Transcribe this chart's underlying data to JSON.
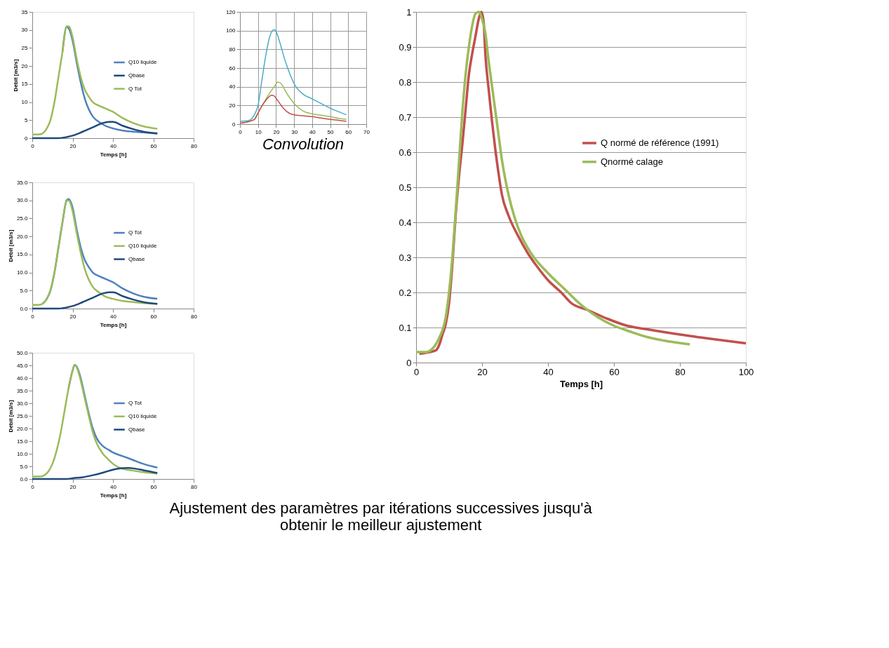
{
  "chart_data": [
    {
      "type": "line",
      "xlabel": "Temps [h]",
      "ylabel": "Débit [m3/s]",
      "xlim": [
        0,
        80
      ],
      "xticks": [
        0,
        20,
        40,
        60,
        80
      ],
      "ylim": [
        0,
        35
      ],
      "yticks": [
        0,
        5,
        10,
        15,
        20,
        25,
        30,
        35
      ],
      "legend": "right",
      "grid": false,
      "series": [
        {
          "name": "Q10 liquide",
          "color": "#4f81bd",
          "x": [
            15,
            17,
            18,
            20,
            22,
            24,
            26,
            28,
            30,
            33,
            36,
            40,
            45,
            50,
            55,
            62
          ],
          "values": [
            24,
            30.8,
            30.5,
            27,
            21,
            15.5,
            11,
            8,
            6,
            4.5,
            3.5,
            2.7,
            2.1,
            1.8,
            1.6,
            1.3
          ]
        },
        {
          "name": "Qbase",
          "color": "#1f497d",
          "x": [
            0,
            13,
            17,
            20,
            25,
            30,
            35,
            38,
            40,
            45,
            50,
            55,
            62
          ],
          "values": [
            0,
            0,
            0.3,
            0.7,
            1.8,
            3,
            4.2,
            4.5,
            4.5,
            3.4,
            2.5,
            1.8,
            1.3
          ]
        },
        {
          "name": "Q Tot",
          "color": "#9bbb59",
          "x": [
            0,
            3,
            5,
            7,
            9,
            11,
            13,
            15,
            17,
            18,
            20,
            22,
            24,
            26,
            28,
            30,
            33,
            36,
            40,
            45,
            50,
            55,
            62
          ],
          "values": [
            1,
            1,
            1.3,
            2.5,
            5,
            10,
            17,
            24,
            31,
            31,
            28,
            22,
            17,
            13.5,
            11.5,
            10,
            9,
            8.3,
            7.3,
            5.5,
            4.2,
            3.3,
            2.6
          ]
        }
      ]
    },
    {
      "type": "line",
      "xlabel": "Temps [h]",
      "ylabel": "Débit [m3/s]",
      "xlim": [
        0,
        80
      ],
      "xticks": [
        0,
        20,
        40,
        60,
        80
      ],
      "ylim": [
        0,
        35
      ],
      "yticks": [
        {
          "value": 0,
          "label": "0.0"
        },
        {
          "value": 5,
          "label": "5.0"
        },
        {
          "value": 10,
          "label": "10.0"
        },
        {
          "value": 15,
          "label": "15.0"
        },
        {
          "value": 20,
          "label": "20.0"
        },
        {
          "value": 25,
          "label": "25.0"
        },
        {
          "value": 30,
          "label": "30.0"
        },
        {
          "value": 35,
          "label": "35.0"
        }
      ],
      "legend": "right",
      "grid": false,
      "series": [
        {
          "name": "Q Tot",
          "color": "#4f81bd",
          "x": [
            5,
            7,
            9,
            11,
            13,
            15,
            17,
            18,
            20,
            22,
            24,
            26,
            28,
            30,
            33,
            36,
            40,
            45,
            50,
            55,
            62
          ],
          "values": [
            1.3,
            2.5,
            5,
            10,
            17,
            24,
            30,
            30.4,
            28,
            22,
            17,
            13.5,
            11.5,
            10,
            9,
            8.3,
            7.3,
            5.5,
            4.2,
            3.3,
            2.7
          ]
        },
        {
          "name": "Q10 liquide",
          "color": "#9bbb59",
          "x": [
            0,
            3,
            5,
            7,
            9,
            11,
            13,
            15,
            17,
            18,
            20,
            22,
            24,
            26,
            28,
            30,
            33,
            36,
            40,
            45,
            50,
            55,
            62
          ],
          "values": [
            1,
            1,
            1.3,
            2.5,
            5,
            10,
            17,
            24,
            29.8,
            30,
            27,
            21,
            15.5,
            11,
            8,
            6,
            4.5,
            3.4,
            2.7,
            2.1,
            1.8,
            1.5,
            1.3
          ]
        },
        {
          "name": "Qbase",
          "color": "#1f497d",
          "x": [
            0,
            13,
            17,
            20,
            25,
            30,
            35,
            38,
            40,
            45,
            50,
            55,
            62
          ],
          "values": [
            0,
            0,
            0.3,
            0.7,
            1.8,
            3,
            4.2,
            4.5,
            4.5,
            3.4,
            2.5,
            1.8,
            1.3
          ]
        }
      ]
    },
    {
      "type": "line",
      "xlabel": "Temps [h]",
      "ylabel": "Débit [m3/s]",
      "xlim": [
        0,
        80
      ],
      "xticks": [
        0,
        20,
        40,
        60,
        80
      ],
      "ylim": [
        0,
        50
      ],
      "yticks": [
        {
          "value": 0,
          "label": "0.0"
        },
        {
          "value": 5,
          "label": "5.0"
        },
        {
          "value": 10,
          "label": "10.0"
        },
        {
          "value": 15,
          "label": "15.0"
        },
        {
          "value": 20,
          "label": "20.0"
        },
        {
          "value": 25,
          "label": "25.0"
        },
        {
          "value": 30,
          "label": "30.0"
        },
        {
          "value": 35,
          "label": "35.0"
        },
        {
          "value": 40,
          "label": "40.0"
        },
        {
          "value": 45,
          "label": "45.0"
        },
        {
          "value": 50,
          "label": "50.0"
        }
      ],
      "legend": "right",
      "grid": false,
      "series": [
        {
          "name": "Q Tot",
          "color": "#4f81bd",
          "x": [
            18,
            20,
            21,
            22,
            24,
            26,
            28,
            30,
            32,
            35,
            38,
            40,
            45,
            50,
            55,
            62
          ],
          "values": [
            36,
            43,
            45.2,
            44.5,
            40,
            33,
            26,
            20,
            16,
            13,
            11.5,
            10.5,
            9,
            7.5,
            6,
            4.5
          ]
        },
        {
          "name": "Q10 liquide",
          "color": "#9bbb59",
          "x": [
            0,
            4,
            6,
            8,
            10,
            12,
            14,
            16,
            18,
            20,
            21,
            22,
            24,
            26,
            28,
            30,
            32,
            35,
            38,
            40,
            45,
            50,
            55,
            62
          ],
          "values": [
            1,
            1,
            1.5,
            3,
            6,
            11,
            18,
            27,
            36,
            43,
            45,
            44.3,
            39,
            32,
            25,
            18.5,
            14,
            10,
            7.5,
            6,
            4,
            3.3,
            2.7,
            2.1
          ]
        },
        {
          "name": "Qbase",
          "color": "#1f497d",
          "x": [
            0,
            17,
            20,
            25,
            30,
            35,
            40,
            45,
            48,
            50,
            55,
            62
          ],
          "values": [
            0,
            0,
            0.3,
            0.7,
            1.5,
            2.5,
            3.7,
            4.3,
            4.4,
            4.2,
            3.5,
            2.4
          ]
        }
      ]
    },
    {
      "type": "line",
      "annotations": [
        "Convolution"
      ],
      "xlim": [
        0,
        70
      ],
      "xticks": [
        0,
        10,
        20,
        30,
        40,
        50,
        60,
        70
      ],
      "ylim": [
        0,
        120
      ],
      "yticks": [
        0,
        20,
        40,
        60,
        80,
        100,
        120
      ],
      "grid": true,
      "series": [
        {
          "color": "#4bacc6",
          "x": [
            0,
            5,
            8,
            10,
            12,
            14,
            16,
            18,
            19,
            20,
            22,
            25,
            28,
            31,
            35,
            40,
            45,
            50,
            55,
            59
          ],
          "values": [
            3,
            4,
            10,
            20,
            45,
            70,
            90,
            100,
            101,
            99,
            88,
            68,
            52,
            40,
            32,
            27,
            22,
            17,
            13,
            10
          ]
        },
        {
          "color": "#9bbb59",
          "x": [
            0,
            8,
            10,
            13,
            16,
            19,
            21,
            23,
            25,
            28,
            31,
            35,
            40,
            45,
            50,
            55,
            59
          ],
          "values": [
            1,
            5,
            12,
            22,
            32,
            40,
            45,
            43,
            36,
            27,
            20,
            14,
            11,
            9.5,
            8,
            6,
            5
          ]
        },
        {
          "color": "#c0504d",
          "x": [
            0,
            8,
            10,
            13,
            16,
            17.5,
            19,
            21,
            24,
            27,
            30,
            35,
            40,
            45,
            50,
            55,
            59
          ],
          "values": [
            1,
            5,
            12,
            22,
            29,
            31,
            30,
            25,
            17,
            12,
            10,
            9,
            8,
            6.5,
            5,
            4,
            3
          ]
        }
      ]
    },
    {
      "type": "line",
      "xlabel": "Temps [h]",
      "annotations": [
        "Ajustement des paramètres par itérations successives jusqu'à\nobtenir le meilleur ajustement"
      ],
      "xlim": [
        0,
        100
      ],
      "xticks": [
        0,
        20,
        40,
        60,
        80,
        100
      ],
      "ylim": [
        0,
        1
      ],
      "yticks": [
        0,
        0.1,
        0.2,
        0.3,
        0.4,
        0.5,
        0.6,
        0.7,
        0.8,
        0.9,
        1
      ],
      "legend": "right",
      "grid": "y",
      "series": [
        {
          "name": "Q normé de référence (1991)",
          "color": "#c0504d",
          "x": [
            1,
            3,
            6,
            7,
            8,
            9,
            10,
            11,
            12,
            13,
            14,
            15,
            16,
            17,
            18,
            19,
            19.8,
            20.5,
            21,
            22,
            23,
            24,
            25,
            26,
            28,
            31,
            34,
            37,
            40,
            44,
            47,
            52,
            58,
            64,
            70,
            80,
            90,
            100
          ],
          "values": [
            0.025,
            0.028,
            0.035,
            0.05,
            0.08,
            0.11,
            0.17,
            0.28,
            0.42,
            0.53,
            0.62,
            0.72,
            0.82,
            0.88,
            0.93,
            0.98,
            1.0,
            0.97,
            0.88,
            0.78,
            0.69,
            0.61,
            0.54,
            0.48,
            0.42,
            0.36,
            0.31,
            0.27,
            0.235,
            0.2,
            0.17,
            0.15,
            0.125,
            0.105,
            0.095,
            0.08,
            0.067,
            0.055
          ]
        },
        {
          "name": "Qnormé calage",
          "color": "#9bbb59",
          "x": [
            0,
            3,
            5,
            7,
            9,
            10,
            11,
            12,
            13,
            14,
            15,
            16,
            17,
            18,
            19,
            20,
            21,
            22,
            23,
            24,
            25,
            26,
            28,
            30,
            32,
            35,
            40,
            45,
            50,
            55,
            60,
            65,
            70,
            75,
            83
          ],
          "values": [
            0.03,
            0.03,
            0.04,
            0.07,
            0.13,
            0.2,
            0.3,
            0.43,
            0.57,
            0.71,
            0.82,
            0.9,
            0.96,
            0.995,
            1.0,
            0.98,
            0.94,
            0.86,
            0.79,
            0.72,
            0.65,
            0.58,
            0.48,
            0.41,
            0.36,
            0.31,
            0.255,
            0.21,
            0.165,
            0.13,
            0.105,
            0.088,
            0.073,
            0.063,
            0.052
          ]
        }
      ]
    }
  ]
}
